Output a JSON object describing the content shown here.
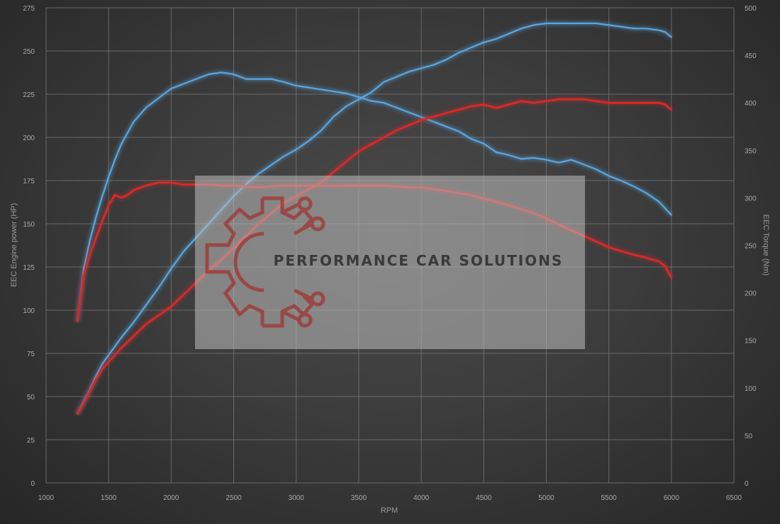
{
  "chart_data": {
    "type": "line",
    "xlabel": "RPM",
    "ylabel_left": "EEC Engine power (HP)",
    "ylabel_right": "EEC Torque (Nm)",
    "xlim": [
      1000,
      6500
    ],
    "ylim_left": [
      0,
      275
    ],
    "ylim_right": [
      0,
      500
    ],
    "x_ticks": [
      1000,
      1500,
      2000,
      2500,
      3000,
      3500,
      4000,
      4500,
      5000,
      5500,
      6000,
      6500
    ],
    "y_left_ticks": [
      0,
      25,
      50,
      75,
      100,
      125,
      150,
      175,
      200,
      225,
      250,
      275
    ],
    "y_right_ticks": [
      0,
      50,
      100,
      150,
      200,
      250,
      300,
      350,
      400,
      450,
      500
    ],
    "grid": true,
    "colors": {
      "blue": "#5aa6e0",
      "red": "#d42a2a"
    },
    "series": [
      {
        "axis": "right",
        "color": "blue",
        "x": [
          1250,
          1300,
          1350,
          1400,
          1450,
          1500,
          1550,
          1600,
          1650,
          1700,
          1800,
          1900,
          2000,
          2100,
          2200,
          2300,
          2400,
          2500,
          2600,
          2700,
          2800,
          2900,
          3000,
          3100,
          3200,
          3300,
          3400,
          3500,
          3600,
          3700,
          3800,
          3900,
          4000,
          4100,
          4200,
          4300,
          4400,
          4500,
          4600,
          4700,
          4800,
          4900,
          5000,
          5100,
          5200,
          5300,
          5400,
          5500,
          5600,
          5700,
          5800,
          5900,
          6000
        ],
        "values": [
          170,
          225,
          255,
          280,
          302,
          322,
          340,
          356,
          368,
          380,
          395,
          405,
          415,
          420,
          425,
          430,
          432,
          430,
          425,
          425,
          425,
          422,
          418,
          416,
          414,
          412,
          410,
          406,
          402,
          400,
          395,
          390,
          385,
          380,
          375,
          370,
          362,
          357,
          348,
          345,
          341,
          342,
          340,
          337,
          340,
          335,
          330,
          323,
          318,
          312,
          305,
          296,
          282
        ]
      },
      {
        "axis": "left",
        "color": "blue",
        "x": [
          1250,
          1300,
          1350,
          1400,
          1450,
          1500,
          1600,
          1700,
          1800,
          1900,
          2000,
          2100,
          2200,
          2300,
          2400,
          2500,
          2600,
          2700,
          2800,
          2900,
          3000,
          3100,
          3200,
          3300,
          3400,
          3500,
          3600,
          3700,
          3800,
          3900,
          4000,
          4100,
          4200,
          4300,
          4400,
          4500,
          4600,
          4700,
          4800,
          4900,
          5000,
          5100,
          5200,
          5300,
          5400,
          5500,
          5600,
          5700,
          5800,
          5900,
          5950,
          6000
        ],
        "values": [
          40,
          47,
          54,
          62,
          69,
          74,
          84,
          93,
          103,
          113,
          124,
          134,
          142,
          150,
          158,
          166,
          173,
          179,
          184,
          189,
          193,
          198,
          204,
          212,
          218,
          222,
          226,
          232,
          235,
          238,
          240,
          242,
          245,
          249,
          252,
          255,
          257,
          260,
          263,
          265,
          266,
          266,
          266,
          266,
          266,
          265,
          264,
          263,
          263,
          262,
          261,
          258
        ]
      },
      {
        "axis": "right",
        "color": "red",
        "x": [
          1250,
          1300,
          1350,
          1400,
          1450,
          1500,
          1550,
          1600,
          1650,
          1700,
          1800,
          1900,
          2000,
          2100,
          2200,
          2300,
          2400,
          2500,
          2600,
          2700,
          2800,
          2900,
          3000,
          3100,
          3200,
          3300,
          3400,
          3500,
          3600,
          3700,
          3800,
          3900,
          4000,
          4100,
          4200,
          4300,
          4400,
          4500,
          4600,
          4700,
          4800,
          4900,
          5000,
          5100,
          5200,
          5300,
          5400,
          5500,
          5600,
          5700,
          5800,
          5900,
          5950,
          6000
        ],
        "values": [
          170,
          218,
          240,
          258,
          276,
          292,
          303,
          300,
          303,
          308,
          313,
          316,
          316,
          314,
          314,
          314,
          313,
          313,
          312,
          311,
          312,
          313,
          313,
          313,
          313,
          313,
          313,
          313,
          313,
          313,
          312,
          311,
          311,
          309,
          307,
          305,
          303,
          299,
          296,
          292,
          288,
          284,
          278,
          272,
          266,
          260,
          254,
          248,
          244,
          240,
          237,
          233,
          228,
          216
        ]
      },
      {
        "axis": "left",
        "color": "red",
        "x": [
          1250,
          1300,
          1350,
          1400,
          1450,
          1500,
          1600,
          1700,
          1800,
          1900,
          2000,
          2100,
          2200,
          2300,
          2400,
          2500,
          2600,
          2700,
          2800,
          2900,
          3000,
          3100,
          3200,
          3300,
          3400,
          3500,
          3600,
          3700,
          3800,
          3900,
          4000,
          4100,
          4200,
          4300,
          4400,
          4500,
          4600,
          4700,
          4800,
          4900,
          5000,
          5100,
          5200,
          5300,
          5400,
          5500,
          5600,
          5700,
          5800,
          5900,
          5950,
          6000
        ],
        "values": [
          40,
          46,
          53,
          60,
          66,
          70,
          78,
          85,
          92,
          97,
          102,
          109,
          116,
          123,
          129,
          136,
          143,
          150,
          156,
          162,
          166,
          170,
          174,
          180,
          186,
          192,
          196,
          200,
          204,
          207,
          210,
          212,
          214,
          216,
          218,
          219,
          217,
          219,
          221,
          220,
          221,
          222,
          222,
          222,
          221,
          220,
          220,
          220,
          220,
          220,
          219,
          216
        ]
      }
    ],
    "watermark": "PERFORMANCE CAR SOLUTIONS"
  }
}
